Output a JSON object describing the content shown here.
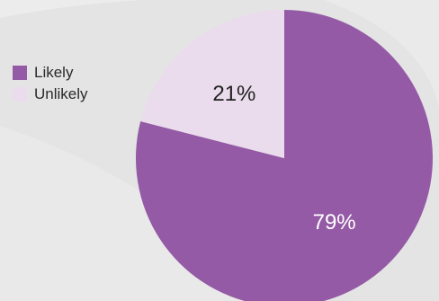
{
  "chart_data": {
    "type": "pie",
    "title": "",
    "categories": [
      "Likely",
      "Unlikely"
    ],
    "values": [
      79,
      21
    ],
    "labels": [
      "79%",
      "21%"
    ],
    "colors": [
      "#955aa6",
      "#eadcec"
    ],
    "label_colors": [
      "#ffffff",
      "#222222"
    ],
    "legend_position": "left"
  }
}
